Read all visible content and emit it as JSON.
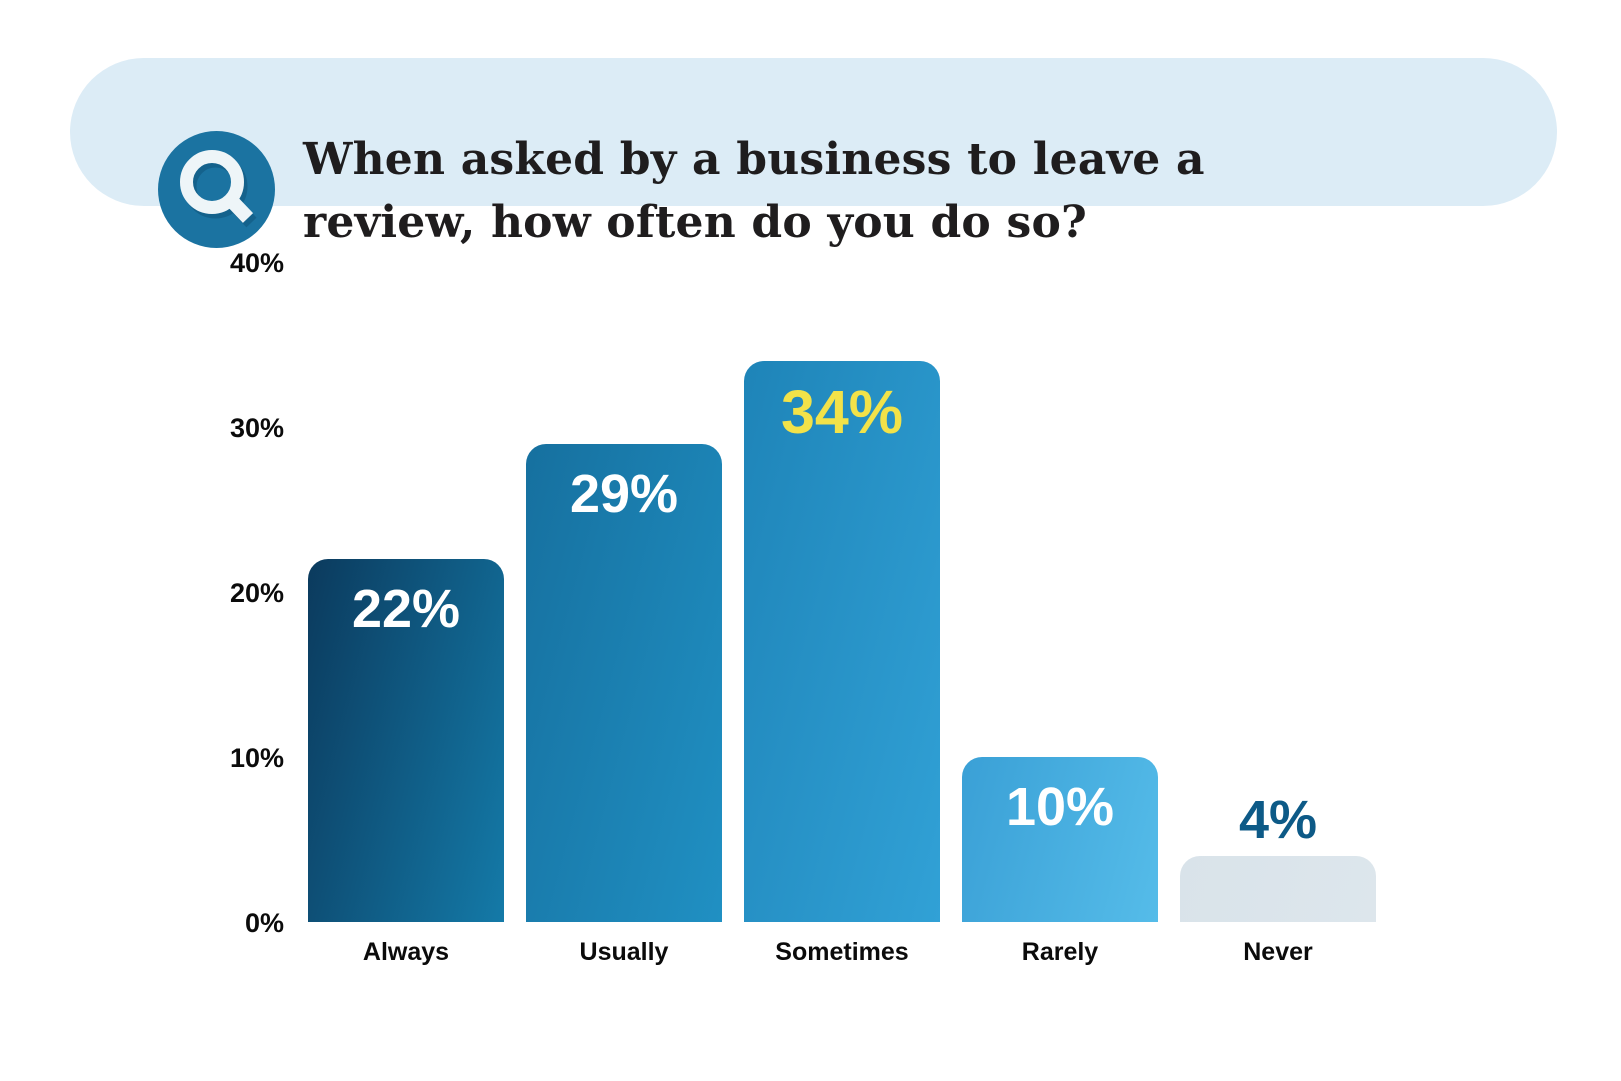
{
  "header": {
    "question_line1": "When asked by a business to leave a",
    "question_line2": "review, how often do you do so?",
    "icon": "magnifier-q-icon",
    "pill_bg": "#dcecf6",
    "badge_bg": "#1b73a1",
    "badge_glyph_color": "#eef5f8"
  },
  "chart_data": {
    "type": "bar",
    "title": "When asked by a business to leave a review, how often do you do so?",
    "categories": [
      "Always",
      "Usually",
      "Sometimes",
      "Rarely",
      "Never"
    ],
    "values": [
      22,
      29,
      34,
      10,
      4
    ],
    "data_labels": [
      "22%",
      "29%",
      "34%",
      "10%",
      "4%"
    ],
    "yticks": [
      "40%",
      "30%",
      "20%",
      "10%",
      "0%"
    ],
    "ylim": [
      0,
      40
    ],
    "xlabel": "",
    "ylabel": "",
    "grid": false,
    "legend": false,
    "highlighted_category": "Sometimes",
    "bar_colors": [
      {
        "from": "#0b3a5d",
        "to": "#147aa8"
      },
      {
        "from": "#16709f",
        "to": "#2090c3"
      },
      {
        "from": "#1e84b8",
        "to": "#31a1d6"
      },
      {
        "from": "#3aa0d6",
        "to": "#55bce9"
      },
      {
        "from": "#d9e3ea",
        "to": "#dde6ec"
      }
    ],
    "data_label_colors": [
      "#ffffff",
      "#ffffff",
      "#f2e249",
      "#ffffff",
      "#0d5a87"
    ],
    "data_label_placement": [
      "inside",
      "inside",
      "inside",
      "inside",
      "above"
    ]
  }
}
